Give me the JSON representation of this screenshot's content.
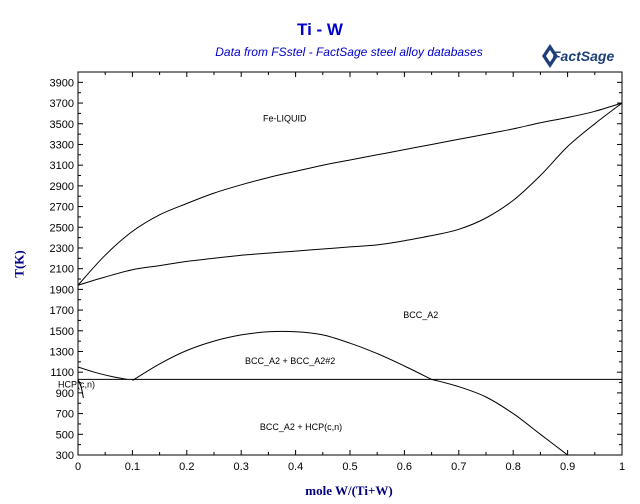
{
  "chart_data": {
    "type": "line",
    "title": "Ti - W",
    "subtitle": "Data from FSstel - FactSage steel alloy databases",
    "logo_text": "FactSage",
    "xlabel": "mole W/(Ti+W)",
    "ylabel": "T(K)",
    "xlim": [
      0,
      1
    ],
    "ylim": [
      300,
      4000
    ],
    "x_ticks": [
      "0",
      "0.1",
      "0.2",
      "0.3",
      "0.4",
      "0.5",
      "0.6",
      "0.7",
      "0.8",
      "0.9",
      "1"
    ],
    "y_ticks": [
      "300",
      "500",
      "700",
      "900",
      "1100",
      "1300",
      "1500",
      "1700",
      "1900",
      "2100",
      "2300",
      "2500",
      "2700",
      "2900",
      "3100",
      "3300",
      "3500",
      "3700",
      "3900"
    ],
    "grid": false,
    "legend": "none",
    "series": [
      {
        "x": [
          0,
          0.05,
          0.1,
          0.15,
          0.2,
          0.25,
          0.3,
          0.35,
          0.4,
          0.45,
          0.5,
          0.55,
          0.6,
          0.65,
          0.7,
          0.75,
          0.8,
          0.85,
          0.9,
          0.95,
          1.0
        ],
        "y": [
          1940,
          2230,
          2460,
          2620,
          2730,
          2830,
          2910,
          2980,
          3040,
          3100,
          3150,
          3200,
          3250,
          3300,
          3350,
          3400,
          3450,
          3510,
          3560,
          3620,
          3700
        ]
      },
      {
        "x": [
          0,
          0.05,
          0.1,
          0.15,
          0.2,
          0.25,
          0.3,
          0.35,
          0.4,
          0.45,
          0.5,
          0.55,
          0.6,
          0.65,
          0.7,
          0.75,
          0.8,
          0.85,
          0.9,
          0.95,
          1.0
        ],
        "y": [
          1940,
          2020,
          2090,
          2130,
          2170,
          2200,
          2230,
          2250,
          2270,
          2290,
          2310,
          2330,
          2370,
          2420,
          2480,
          2590,
          2760,
          3000,
          3280,
          3500,
          3700
        ]
      },
      {
        "x": [
          0.1,
          0.15,
          0.2,
          0.25,
          0.3,
          0.35,
          0.4,
          0.45,
          0.5,
          0.55,
          0.6,
          0.65
        ],
        "y": [
          1020,
          1180,
          1310,
          1400,
          1460,
          1490,
          1490,
          1460,
          1380,
          1280,
          1160,
          1030
        ]
      },
      {
        "x": [
          0,
          1.0
        ],
        "y": [
          1030,
          1030
        ]
      },
      {
        "x": [
          0,
          0.03,
          0.06,
          0.09
        ],
        "y": [
          1150,
          1100,
          1060,
          1030
        ]
      },
      {
        "x": [
          0,
          0.006,
          0.01
        ],
        "y": [
          1030,
          950,
          850
        ]
      },
      {
        "x": [
          0.65,
          0.7,
          0.75,
          0.8,
          0.85,
          0.9,
          0.92
        ],
        "y": [
          1030,
          960,
          860,
          700,
          500,
          300,
          230
        ]
      }
    ],
    "annotations": [
      {
        "text": "Fe-LIQUID",
        "x": 0.38,
        "y": 3560
      },
      {
        "text": "BCC_A2",
        "x": 0.63,
        "y": 1660
      },
      {
        "text": "BCC_A2 + BCC_A2#2",
        "x": 0.39,
        "y": 1220
      },
      {
        "text": "HCP(c,n)",
        "x": 0.0,
        "y": 990
      },
      {
        "text": "BCC_A2 + HCP(c,n)",
        "x": 0.41,
        "y": 580
      }
    ]
  },
  "colors": {
    "title": "#0000cc",
    "axis_label": "#000080",
    "line": "#000000",
    "logo": "#1f3f7a"
  }
}
